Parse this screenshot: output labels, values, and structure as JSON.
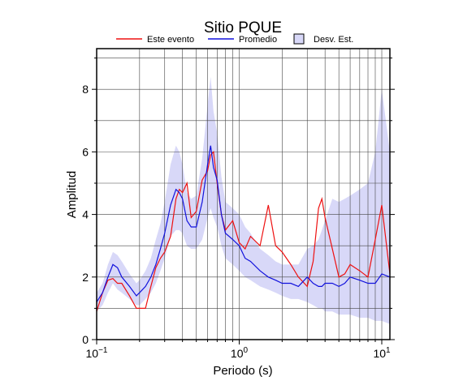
{
  "chart_data": {
    "type": "line",
    "title": "Sitio PQUE",
    "xlabel": "Periodo (s)",
    "ylabel": "Amplitud",
    "xscale": "log",
    "grid": true,
    "xlim": [
      0.1,
      11.4
    ],
    "ylim": [
      0,
      9.3
    ],
    "xticks": [
      {
        "value": 0.1,
        "label": "10",
        "exponent": "−1"
      },
      {
        "value": 1,
        "label": "10",
        "exponent": "0"
      },
      {
        "value": 10,
        "label": "10",
        "exponent": "1"
      }
    ],
    "xminor": [
      0.2,
      0.3,
      0.4,
      0.5,
      0.6,
      0.7,
      0.8,
      0.9,
      2,
      3,
      4,
      5,
      6,
      7,
      8,
      9
    ],
    "yticks": [
      0,
      2,
      4,
      6,
      8
    ],
    "yminor": [
      1,
      3,
      5,
      7,
      9
    ],
    "x": [
      0.1,
      0.11,
      0.12,
      0.13,
      0.14,
      0.15,
      0.17,
      0.19,
      0.2,
      0.22,
      0.24,
      0.26,
      0.28,
      0.3,
      0.33,
      0.36,
      0.38,
      0.4,
      0.43,
      0.46,
      0.5,
      0.55,
      0.6,
      0.63,
      0.66,
      0.7,
      0.75,
      0.8,
      0.9,
      1.0,
      1.1,
      1.2,
      1.4,
      1.6,
      1.8,
      2.0,
      2.3,
      2.6,
      3.0,
      3.3,
      3.6,
      3.8,
      4.0,
      4.5,
      5,
      5.5,
      6,
      7,
      8,
      9,
      10,
      11.4
    ],
    "band": {
      "name": "Desv. Est.",
      "color": "#d8d8f8",
      "lower": [
        0.9,
        1.1,
        1.5,
        1.8,
        1.6,
        1.5,
        1.3,
        1.1,
        1.1,
        1.3,
        1.5,
        1.8,
        2.2,
        2.6,
        3.3,
        3.5,
        3.5,
        3.4,
        3.0,
        2.9,
        2.9,
        3.2,
        3.9,
        4.2,
        3.9,
        3.6,
        3.0,
        2.6,
        2.4,
        2.2,
        2.0,
        1.9,
        1.7,
        1.6,
        1.5,
        1.4,
        1.3,
        1.3,
        1.2,
        1.1,
        1.0,
        1.0,
        0.9,
        0.9,
        0.8,
        0.8,
        0.8,
        0.7,
        0.7,
        0.6,
        0.6,
        0.5
      ],
      "upper": [
        1.5,
        1.8,
        2.4,
        2.8,
        2.7,
        2.5,
        2.1,
        1.8,
        1.9,
        2.2,
        2.6,
        3.2,
        3.7,
        4.4,
        5.6,
        6.2,
        6.0,
        5.6,
        4.7,
        4.5,
        4.6,
        5.8,
        7.5,
        8.4,
        7.3,
        6.6,
        5.2,
        4.4,
        4.2,
        4.0,
        3.6,
        3.4,
        2.9,
        2.7,
        2.5,
        2.4,
        2.4,
        2.4,
        2.9,
        3.0,
        3.2,
        3.5,
        3.8,
        4.5,
        4.4,
        4.5,
        4.6,
        4.8,
        5.0,
        6.0,
        8.0,
        6.0
      ]
    },
    "series": [
      {
        "name": "Este evento",
        "color": "#ee1111",
        "values": [
          0.9,
          1.5,
          1.9,
          1.95,
          1.8,
          1.8,
          1.4,
          1.0,
          1.0,
          1.0,
          1.7,
          2.3,
          2.6,
          2.8,
          3.3,
          4.5,
          4.8,
          4.7,
          5.0,
          3.9,
          4.1,
          5.1,
          5.4,
          5.9,
          6.0,
          5.0,
          4.0,
          3.5,
          3.8,
          3.1,
          2.9,
          3.3,
          3.0,
          4.3,
          3.0,
          2.8,
          2.4,
          2.0,
          1.7,
          2.5,
          4.2,
          4.5,
          3.9,
          2.9,
          2.0,
          2.1,
          2.4,
          2.2,
          2.0,
          3.2,
          4.3,
          2.1
        ]
      },
      {
        "name": "Promedio",
        "color": "#1111dd",
        "values": [
          1.2,
          1.5,
          2.0,
          2.4,
          2.3,
          2.0,
          1.7,
          1.4,
          1.5,
          1.7,
          2.0,
          2.4,
          2.9,
          3.4,
          4.3,
          4.8,
          4.7,
          4.5,
          3.8,
          3.6,
          3.6,
          4.4,
          5.6,
          6.2,
          5.5,
          5.1,
          4.0,
          3.4,
          3.2,
          3.0,
          2.6,
          2.5,
          2.2,
          2.0,
          1.9,
          1.8,
          1.8,
          1.7,
          2.0,
          1.8,
          1.7,
          1.7,
          1.8,
          1.8,
          1.7,
          1.8,
          2.0,
          1.9,
          1.8,
          1.8,
          2.1,
          2.0
        ]
      }
    ]
  }
}
